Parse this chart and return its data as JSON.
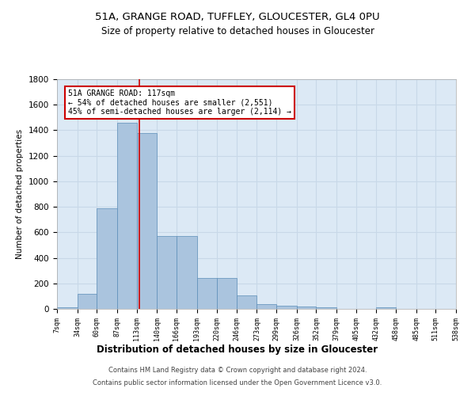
{
  "title_line1": "51A, GRANGE ROAD, TUFFLEY, GLOUCESTER, GL4 0PU",
  "title_line2": "Size of property relative to detached houses in Gloucester",
  "xlabel": "Distribution of detached houses by size in Gloucester",
  "ylabel": "Number of detached properties",
  "footer_line1": "Contains HM Land Registry data © Crown copyright and database right 2024.",
  "footer_line2": "Contains public sector information licensed under the Open Government Licence v3.0.",
  "annotation_line1": "51A GRANGE ROAD: 117sqm",
  "annotation_line2": "← 54% of detached houses are smaller (2,551)",
  "annotation_line3": "45% of semi-detached houses are larger (2,114) →",
  "property_size_sqm": 117,
  "bar_left_edges": [
    7,
    34,
    60,
    87,
    113,
    140,
    166,
    193,
    220,
    246,
    273,
    299,
    326,
    352,
    379,
    405,
    432,
    458,
    485,
    511
  ],
  "bar_widths": [
    27,
    26,
    27,
    26,
    27,
    26,
    27,
    27,
    26,
    27,
    26,
    27,
    26,
    27,
    26,
    27,
    26,
    27,
    26,
    27
  ],
  "bar_heights": [
    10,
    120,
    790,
    1460,
    1380,
    570,
    570,
    245,
    245,
    105,
    35,
    25,
    20,
    10,
    0,
    0,
    10,
    0,
    0,
    0
  ],
  "tick_labels": [
    "7sqm",
    "34sqm",
    "60sqm",
    "87sqm",
    "113sqm",
    "140sqm",
    "166sqm",
    "193sqm",
    "220sqm",
    "246sqm",
    "273sqm",
    "299sqm",
    "326sqm",
    "352sqm",
    "379sqm",
    "405sqm",
    "432sqm",
    "458sqm",
    "485sqm",
    "511sqm",
    "538sqm"
  ],
  "bar_color": "#aac4de",
  "bar_edge_color": "#5b8db8",
  "highlight_line_color": "#cc0000",
  "grid_color": "#c8d8e8",
  "bg_color": "#dce9f5",
  "ylim": [
    0,
    1800
  ],
  "yticks": [
    0,
    200,
    400,
    600,
    800,
    1000,
    1200,
    1400,
    1600,
    1800
  ],
  "figsize": [
    6.0,
    5.0
  ],
  "dpi": 100
}
